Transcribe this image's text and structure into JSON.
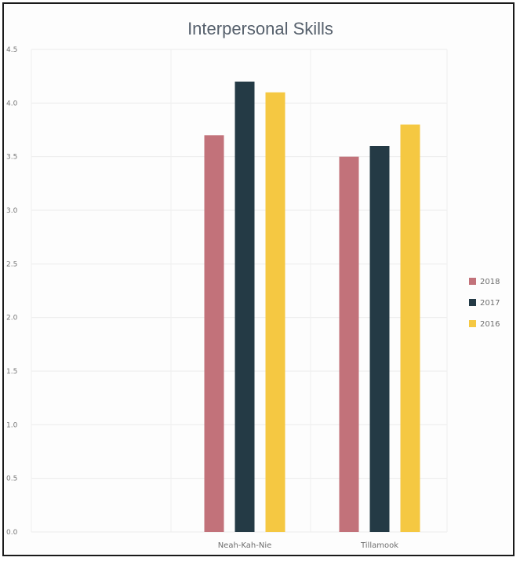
{
  "chart_data": {
    "type": "bar",
    "title": "Interpersonal Skills",
    "categories": [
      "Neah-Kah-Nie",
      "Tillamook"
    ],
    "series": [
      {
        "name": "2018",
        "values": [
          3.7,
          3.5
        ],
        "color": "#c2727a"
      },
      {
        "name": "2017",
        "values": [
          4.2,
          3.6
        ],
        "color": "#243a45"
      },
      {
        "name": "2016",
        "values": [
          4.1,
          3.8
        ],
        "color": "#f5c842"
      }
    ],
    "yticks": [
      "0.0",
      "0.5",
      "1.0",
      "1.5",
      "2.0",
      "2.5",
      "3.0",
      "3.5",
      "4.0",
      "4.5"
    ],
    "ylim": [
      0,
      4.5
    ],
    "xlabel": "",
    "ylabel": "",
    "legend": "right",
    "grid": true
  }
}
